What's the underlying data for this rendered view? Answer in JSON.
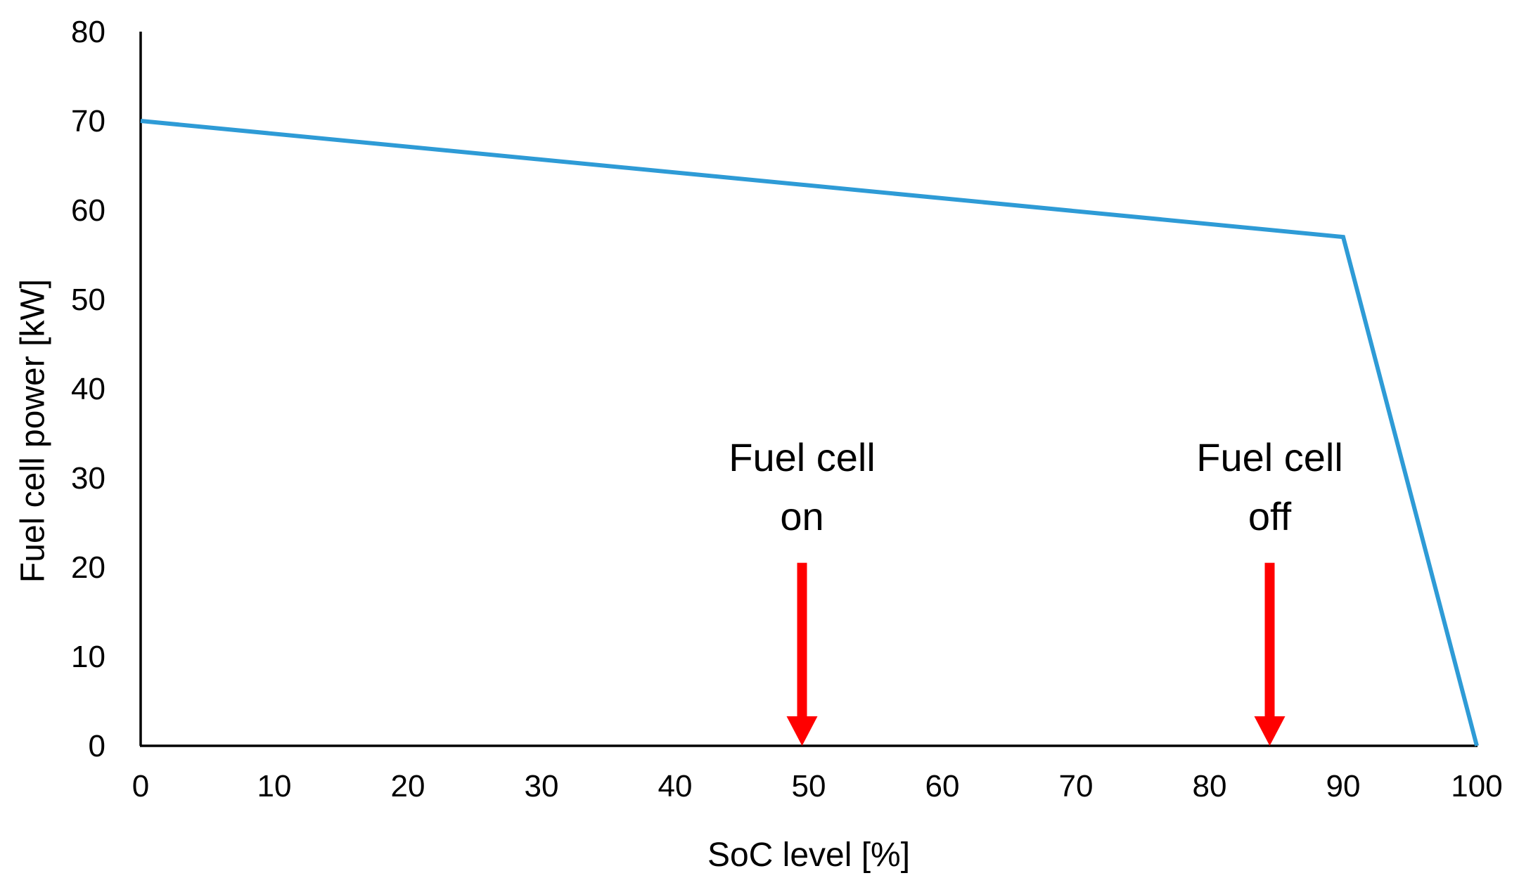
{
  "chart_data": {
    "type": "line",
    "title": "",
    "xlabel": "SoC level [%]",
    "ylabel": "Fuel cell power [kW]",
    "xlim": [
      0,
      100
    ],
    "ylim": [
      0,
      80
    ],
    "x_ticks": [
      0,
      10,
      20,
      30,
      40,
      50,
      60,
      70,
      80,
      90,
      100
    ],
    "y_ticks": [
      0,
      10,
      20,
      30,
      40,
      50,
      60,
      70,
      80
    ],
    "x_tick_labels": [
      "0",
      "10",
      "20",
      "30",
      "40",
      "50",
      "60",
      "70",
      "80",
      "90",
      "100"
    ],
    "y_tick_labels": [
      "0",
      "10",
      "20",
      "30",
      "40",
      "50",
      "60",
      "70",
      "80"
    ],
    "grid": false,
    "legend": false,
    "series": [
      {
        "name": "Fuel cell power",
        "color": "#2E9BD6",
        "x": [
          0,
          90,
          100
        ],
        "y": [
          70,
          57,
          0
        ]
      }
    ],
    "annotations": [
      {
        "line1": "Fuel cell",
        "line2": "on",
        "x": 49.5,
        "arrow_from_y": 20.5,
        "arrow_to_y": 0,
        "color": "#FF0000"
      },
      {
        "line1": "Fuel cell",
        "line2": "off",
        "x": 84.5,
        "arrow_from_y": 20.5,
        "arrow_to_y": 0,
        "color": "#FF0000"
      }
    ]
  }
}
